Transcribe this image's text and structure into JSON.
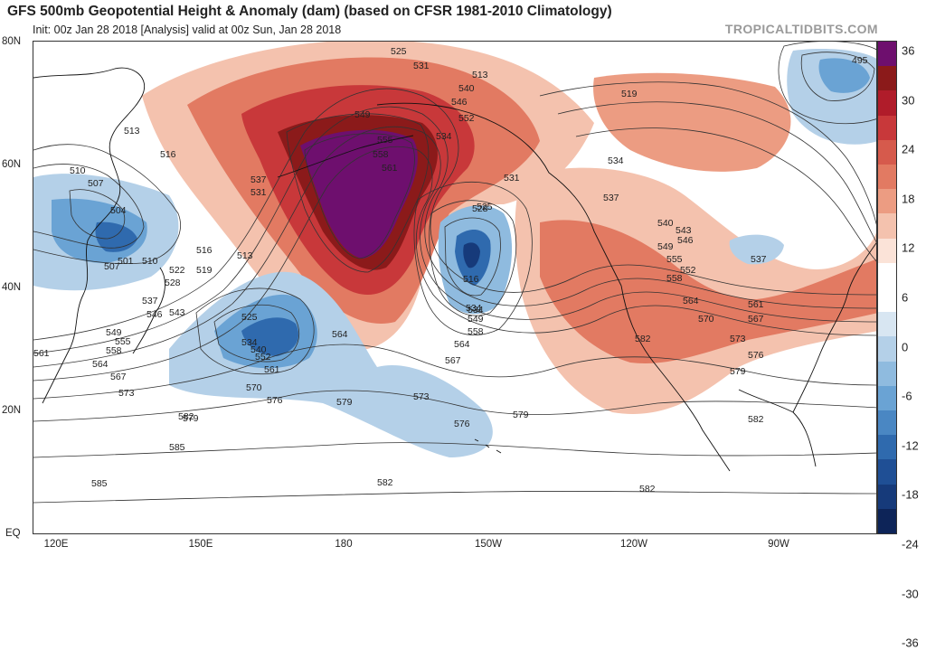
{
  "header": {
    "title": "GFS 500mb Geopotential Height & Anomaly (dam) (based on CFSR 1981-2010 Climatology)",
    "subtitle": "Init: 00z Jan 28 2018   [Analysis]   valid at 00z Sun, Jan 28 2018",
    "watermark": "TROPICALTIDBITS.COM"
  },
  "map": {
    "lat_labels": [
      "80N",
      "60N",
      "40N",
      "20N",
      "EQ"
    ],
    "lon_labels": [
      "120E",
      "150E",
      "180",
      "150W",
      "120W",
      "90W"
    ],
    "land_color": "#ffffff",
    "ocean_color": "#ffffff"
  },
  "colorbar": {
    "labels": [
      "36",
      "30",
      "24",
      "18",
      "12",
      "6",
      "0",
      "-6",
      "-12",
      "-18",
      "-24",
      "-30",
      "-36"
    ],
    "colors": [
      "#6e0f6e",
      "#8b1a1a",
      "#b01c2a",
      "#c8383a",
      "#d65a4c",
      "#e27a62",
      "#ec9c82",
      "#f4c2ae",
      "#fbe3d8",
      "#ffffff",
      "#ffffff",
      "#d8e6f2",
      "#b4d0e8",
      "#8fbbdf",
      "#6aa3d4",
      "#4a87c3",
      "#2f6aae",
      "#1f4f95",
      "#163a7a",
      "#0d2458"
    ]
  },
  "contour_labels": [
    "525",
    "531",
    "540",
    "546",
    "552",
    "534",
    "549",
    "555",
    "558",
    "561",
    "537",
    "531",
    "516",
    "513",
    "510",
    "507",
    "504",
    "501",
    "507",
    "510",
    "516",
    "513",
    "519",
    "522",
    "528",
    "537",
    "546",
    "543",
    "549",
    "555",
    "558",
    "561",
    "564",
    "567",
    "573",
    "579",
    "585",
    "585",
    "582",
    "525",
    "534",
    "540",
    "552",
    "561",
    "570",
    "576",
    "579",
    "573",
    "576",
    "579",
    "582",
    "564",
    "567",
    "534",
    "528",
    "525",
    "516",
    "534",
    "549",
    "558",
    "564",
    "531",
    "537",
    "540",
    "543",
    "546",
    "549",
    "555",
    "552",
    "558",
    "564",
    "561",
    "567",
    "570",
    "573",
    "576",
    "579",
    "582",
    "582",
    "582",
    "513",
    "519",
    "495",
    "537",
    "534"
  ]
}
